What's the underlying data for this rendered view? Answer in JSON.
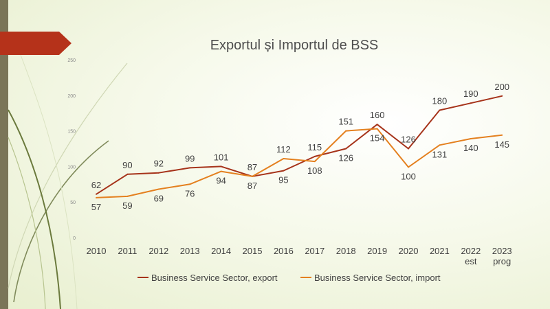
{
  "colors": {
    "export": "#a6331a",
    "import": "#e4801f",
    "flag": "#b5321a",
    "side_bar": "#7a7558"
  },
  "chart_data": {
    "type": "line",
    "title": "Exportul și Importul de BSS",
    "categories": [
      "2010",
      "2011",
      "2012",
      "2013",
      "2014",
      "2015",
      "2016",
      "2017",
      "2018",
      "2019",
      "2020",
      "2021",
      "2022 est",
      "2023 prog"
    ],
    "y_ticks": [
      "0",
      "50",
      "100",
      "150",
      "200",
      "250"
    ],
    "ylim": [
      0,
      250
    ],
    "grid": false,
    "legend_position": "bottom",
    "series": [
      {
        "name": "Business Service Sector, export",
        "color": "#a6331a",
        "values": [
          62,
          90,
          92,
          99,
          101,
          87,
          95,
          115,
          126,
          160,
          126,
          180,
          190,
          200
        ],
        "labels": [
          "62",
          "90",
          "92",
          "99",
          "101",
          "87",
          "95",
          "115",
          "126",
          "160",
          "126",
          "180",
          "190",
          "200"
        ]
      },
      {
        "name": "Business Service Sector, import",
        "color": "#e4801f",
        "values": [
          57,
          59,
          69,
          76,
          94,
          87,
          112,
          108,
          151,
          154,
          100,
          131,
          140,
          145
        ],
        "labels": [
          "57",
          "59",
          "69",
          "76",
          "94",
          "87",
          "112",
          "108",
          "151",
          "154",
          "100",
          "131",
          "140",
          "145"
        ]
      }
    ]
  }
}
